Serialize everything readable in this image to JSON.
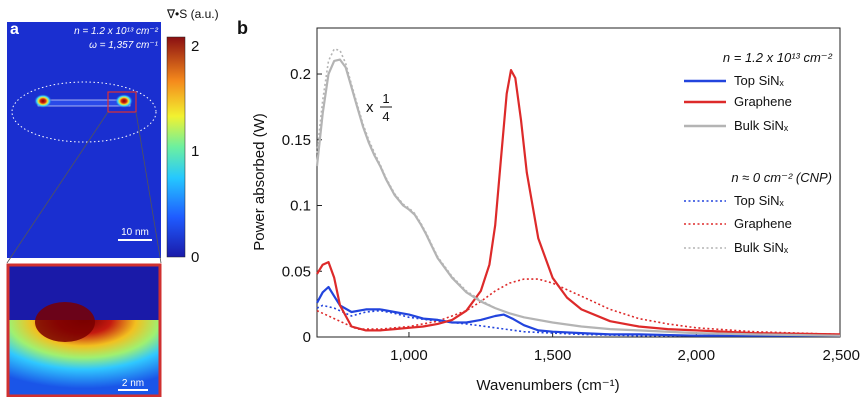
{
  "panel_a": {
    "label": "a",
    "carrier_density": "n = 1.2 x 10¹³ cm⁻²",
    "frequency": "ω = 1,357 cm⁻¹",
    "scale_bar_main": "10 nm",
    "scale_bar_inset": "2 nm",
    "colorbar_title": "∇•S (a.u.)",
    "colorbar_ticks": [
      "2",
      "1",
      "0"
    ],
    "colorbar_values": [
      2,
      1,
      0
    ],
    "colors": {
      "background_field": "#1a2fd0",
      "frame_inset": "#d03030",
      "ellipse": "#ffffff"
    }
  },
  "panel_b": {
    "label": "b",
    "legend_group1_title": "n = 1.2 x 10¹³ cm⁻²",
    "legend_group2_title": "n ≈ 0 cm⁻² (CNP)",
    "scale_annotation": "x 1/4",
    "scale_annotation_prefix": "x",
    "scale_annotation_num": "1",
    "scale_annotation_den": "4"
  },
  "chart_data": {
    "type": "line",
    "xlabel": "Wavenumbers (cm⁻¹)",
    "ylabel": "Power absorbed (W)",
    "xlim": [
      680,
      2500
    ],
    "ylim": [
      0,
      0.235
    ],
    "xticks": [
      1000,
      1500,
      2000,
      2500
    ],
    "xtick_labels": [
      "1,000",
      "1,500",
      "2,000",
      "2,500"
    ],
    "yticks": [
      0,
      0.05,
      0.1,
      0.15,
      0.2
    ],
    "ytick_labels": [
      "0",
      "0.05",
      "0.1",
      "0.15",
      "0.2"
    ],
    "grid": false,
    "legend_position": "top-right",
    "series": [
      {
        "name": "Top SiNₓ",
        "group": "doped",
        "style": "solid",
        "color": "#2244dd",
        "x": [
          680,
          700,
          720,
          740,
          760,
          800,
          850,
          900,
          950,
          1000,
          1050,
          1100,
          1150,
          1200,
          1250,
          1300,
          1330,
          1360,
          1400,
          1450,
          1500,
          1600,
          1700,
          1800,
          2000,
          2200,
          2500
        ],
        "y": [
          0.026,
          0.034,
          0.038,
          0.031,
          0.024,
          0.019,
          0.021,
          0.021,
          0.019,
          0.017,
          0.014,
          0.013,
          0.011,
          0.011,
          0.013,
          0.016,
          0.017,
          0.014,
          0.009,
          0.005,
          0.004,
          0.003,
          0.002,
          0.002,
          0.001,
          0.001,
          0.001
        ]
      },
      {
        "name": "Graphene",
        "group": "doped",
        "style": "solid",
        "color": "#dd2a2a",
        "x": [
          680,
          700,
          720,
          740,
          760,
          800,
          850,
          900,
          950,
          1000,
          1050,
          1100,
          1150,
          1200,
          1250,
          1280,
          1300,
          1320,
          1340,
          1355,
          1370,
          1390,
          1410,
          1450,
          1500,
          1550,
          1600,
          1700,
          1800,
          1900,
          2000,
          2200,
          2500
        ],
        "y": [
          0.048,
          0.055,
          0.057,
          0.045,
          0.024,
          0.008,
          0.005,
          0.005,
          0.006,
          0.007,
          0.008,
          0.01,
          0.013,
          0.02,
          0.035,
          0.055,
          0.085,
          0.135,
          0.185,
          0.203,
          0.197,
          0.165,
          0.125,
          0.075,
          0.045,
          0.03,
          0.021,
          0.012,
          0.008,
          0.006,
          0.005,
          0.003,
          0.002
        ]
      },
      {
        "name": "Bulk SiNₓ",
        "group": "doped",
        "style": "solid",
        "color": "#b4b4b4",
        "x": [
          680,
          700,
          720,
          740,
          760,
          780,
          800,
          820,
          840,
          860,
          880,
          900,
          920,
          950,
          980,
          1000,
          1020,
          1040,
          1060,
          1080,
          1100,
          1150,
          1200,
          1250,
          1300,
          1350,
          1400,
          1500,
          1600,
          1700,
          1800,
          2000,
          2200,
          2500
        ],
        "y": [
          0.13,
          0.17,
          0.2,
          0.21,
          0.211,
          0.205,
          0.19,
          0.175,
          0.16,
          0.148,
          0.138,
          0.13,
          0.12,
          0.108,
          0.1,
          0.097,
          0.093,
          0.086,
          0.078,
          0.069,
          0.06,
          0.045,
          0.034,
          0.027,
          0.022,
          0.018,
          0.015,
          0.011,
          0.008,
          0.006,
          0.005,
          0.003,
          0.002,
          0.001
        ]
      },
      {
        "name": "Top SiNₓ",
        "group": "cnp",
        "style": "dotted",
        "color": "#2244dd",
        "x": [
          680,
          700,
          740,
          800,
          850,
          900,
          950,
          1000,
          1100,
          1200,
          1300,
          1400,
          1500,
          1600,
          1800,
          2000,
          2500
        ],
        "y": [
          0.022,
          0.024,
          0.022,
          0.016,
          0.019,
          0.02,
          0.018,
          0.015,
          0.012,
          0.01,
          0.007,
          0.004,
          0.003,
          0.002,
          0.001,
          0.001,
          0.001
        ]
      },
      {
        "name": "Graphene",
        "group": "cnp",
        "style": "dotted",
        "color": "#dd2a2a",
        "x": [
          680,
          700,
          740,
          780,
          820,
          900,
          1000,
          1100,
          1200,
          1250,
          1300,
          1350,
          1400,
          1450,
          1500,
          1550,
          1600,
          1700,
          1800,
          1900,
          2000,
          2200,
          2500
        ],
        "y": [
          0.02,
          0.018,
          0.014,
          0.01,
          0.006,
          0.006,
          0.008,
          0.012,
          0.02,
          0.027,
          0.035,
          0.041,
          0.044,
          0.044,
          0.041,
          0.036,
          0.031,
          0.021,
          0.014,
          0.01,
          0.007,
          0.004,
          0.002
        ]
      },
      {
        "name": "Bulk SiNₓ",
        "group": "cnp",
        "style": "dotted",
        "color": "#b4b4b4",
        "x": [
          680,
          700,
          720,
          740,
          760,
          780,
          800,
          820,
          840,
          860,
          880,
          900,
          920,
          950,
          980,
          1000,
          1020,
          1040,
          1060,
          1080,
          1100,
          1150,
          1200,
          1250,
          1300,
          1350,
          1400,
          1500,
          1600,
          1700,
          1800,
          2000,
          2200,
          2500
        ],
        "y": [
          0.14,
          0.18,
          0.21,
          0.219,
          0.218,
          0.208,
          0.192,
          0.177,
          0.162,
          0.15,
          0.14,
          0.131,
          0.121,
          0.109,
          0.101,
          0.098,
          0.094,
          0.087,
          0.079,
          0.07,
          0.061,
          0.046,
          0.035,
          0.028,
          0.022,
          0.018,
          0.015,
          0.011,
          0.008,
          0.006,
          0.005,
          0.003,
          0.002,
          0.001
        ]
      }
    ]
  }
}
